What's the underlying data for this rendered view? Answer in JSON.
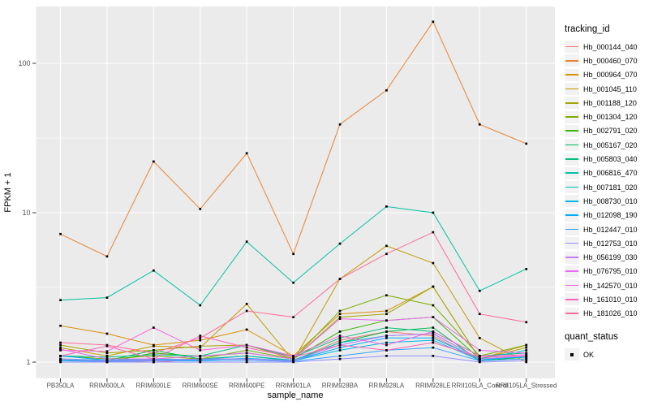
{
  "chart_data": {
    "type": "line",
    "xlabel": "sample_name",
    "ylabel": "FPKM + 1",
    "y_scale": "log10",
    "y_ticks": [
      1,
      10,
      100
    ],
    "y_tick_labels": [
      "1",
      "10",
      "100"
    ],
    "ylim": [
      0.78,
      240
    ],
    "grid": "white major+minor gridlines on gray panel",
    "legend_position": "right",
    "legend_title": "tracking_id",
    "legend2_title": "quant_status",
    "legend2_items": [
      {
        "label": "OK",
        "shape": "filled-square"
      }
    ],
    "panel_bg": "#EBEBEB",
    "grid_color": "#FFFFFF",
    "point_color": "#000000",
    "axis_text_color": "#4D4D4D",
    "axis_title_color": "#000000",
    "legend_key_bg": "#F2F2F2",
    "categories": [
      "PB350LA",
      "RRIM600LA",
      "RRIM600LE",
      "RRIM600SE",
      "RRIM600PE",
      "RRIM901LA",
      "RRIM928BA",
      "RRIM928LA",
      "RRIM928LE",
      "RRII105LA_Control",
      "RRII105LA_Stressed"
    ],
    "series": [
      {
        "name": "Hb_000144_040",
        "color": "#F8766D",
        "values": [
          1.05,
          1.02,
          1.0,
          1.04,
          1.1,
          1.02,
          1.4,
          1.6,
          1.5,
          1.02,
          1.05
        ]
      },
      {
        "name": "Hb_000460_070",
        "color": "#EA8331",
        "values": [
          7.2,
          5.1,
          22,
          10.6,
          25,
          5.3,
          39,
          66,
          190,
          39,
          29
        ]
      },
      {
        "name": "Hb_000964_070",
        "color": "#D89000",
        "values": [
          1.75,
          1.55,
          1.3,
          1.4,
          1.65,
          1.1,
          2.1,
          2.2,
          3.2,
          1.05,
          1.3
        ]
      },
      {
        "name": "Hb_001045_110",
        "color": "#C09B00",
        "values": [
          1.25,
          1.1,
          1.28,
          1.25,
          2.45,
          1.02,
          3.6,
          6.0,
          4.6,
          1.45,
          1.0
        ]
      },
      {
        "name": "Hb_001188_120",
        "color": "#A3A500",
        "values": [
          1.3,
          1.15,
          1.2,
          1.28,
          1.3,
          1.05,
          2.0,
          2.1,
          3.2,
          1.05,
          1.25
        ]
      },
      {
        "name": "Hb_001304_120",
        "color": "#7CAE00",
        "values": [
          1.1,
          1.05,
          1.1,
          1.05,
          1.2,
          1.05,
          2.2,
          2.8,
          2.4,
          1.1,
          1.3
        ]
      },
      {
        "name": "Hb_002791_020",
        "color": "#39B600",
        "values": [
          1.05,
          1.0,
          1.15,
          1.09,
          1.15,
          1.05,
          1.6,
          1.9,
          2.0,
          1.05,
          1.1
        ]
      },
      {
        "name": "Hb_005167_020",
        "color": "#00BB4E",
        "values": [
          1.02,
          1.02,
          1.2,
          1.05,
          1.1,
          1.02,
          1.35,
          1.6,
          1.7,
          1.02,
          1.08
        ]
      },
      {
        "name": "Hb_005803_040",
        "color": "#00BF7D",
        "values": [
          1.1,
          1.08,
          1.12,
          1.1,
          1.3,
          1.08,
          1.45,
          1.7,
          1.6,
          1.1,
          1.15
        ]
      },
      {
        "name": "Hb_006816_470",
        "color": "#00C1A3",
        "values": [
          2.6,
          2.7,
          4.1,
          2.4,
          6.4,
          3.4,
          6.2,
          11.0,
          10.0,
          3.0,
          4.2
        ]
      },
      {
        "name": "Hb_007181_020",
        "color": "#00BFC4",
        "values": [
          1.05,
          1.03,
          1.05,
          1.04,
          1.1,
          1.03,
          1.35,
          1.5,
          1.55,
          1.05,
          1.2
        ]
      },
      {
        "name": "Hb_008730_010",
        "color": "#00B8E7",
        "values": [
          1.03,
          1.02,
          1.04,
          1.03,
          1.06,
          1.02,
          1.2,
          1.35,
          1.4,
          1.03,
          1.1
        ]
      },
      {
        "name": "Hb_012098_190",
        "color": "#00ACFC",
        "values": [
          1.1,
          1.03,
          1.02,
          1.04,
          1.05,
          1.02,
          1.25,
          1.45,
          1.45,
          1.05,
          1.08
        ]
      },
      {
        "name": "Hb_012447_010",
        "color": "#35A2FF",
        "values": [
          1.02,
          1.01,
          1.02,
          1.02,
          1.03,
          1.01,
          1.1,
          1.2,
          1.25,
          1.02,
          1.05
        ]
      },
      {
        "name": "Hb_012753_010",
        "color": "#9590FF",
        "values": [
          1.0,
          1.0,
          1.0,
          1.0,
          1.0,
          1.0,
          1.05,
          1.1,
          1.1,
          1.0,
          1.02
        ]
      },
      {
        "name": "Hb_056199_030",
        "color": "#C77CFF",
        "values": [
          1.05,
          1.02,
          1.03,
          1.05,
          1.05,
          1.02,
          1.3,
          1.5,
          1.55,
          1.05,
          1.1
        ]
      },
      {
        "name": "Hb_076795_010",
        "color": "#E76BF3",
        "values": [
          1.22,
          1.05,
          1.05,
          1.1,
          1.15,
          1.05,
          1.95,
          1.9,
          2.0,
          1.2,
          1.15
        ]
      },
      {
        "name": "Hb_142570_010",
        "color": "#FA62DB",
        "values": [
          1.2,
          1.18,
          1.7,
          1.2,
          1.3,
          1.1,
          1.5,
          1.3,
          1.6,
          1.1,
          1.12
        ]
      },
      {
        "name": "Hb_161010_010",
        "color": "#FF62BC",
        "values": [
          1.1,
          1.28,
          1.05,
          1.5,
          1.25,
          1.08,
          1.3,
          1.2,
          1.35,
          1.08,
          1.1
        ]
      },
      {
        "name": "Hb_181026_010",
        "color": "#FF6A98",
        "values": [
          1.35,
          1.3,
          1.15,
          1.45,
          2.2,
          2.0,
          3.6,
          5.3,
          7.4,
          2.1,
          1.85
        ]
      }
    ]
  }
}
